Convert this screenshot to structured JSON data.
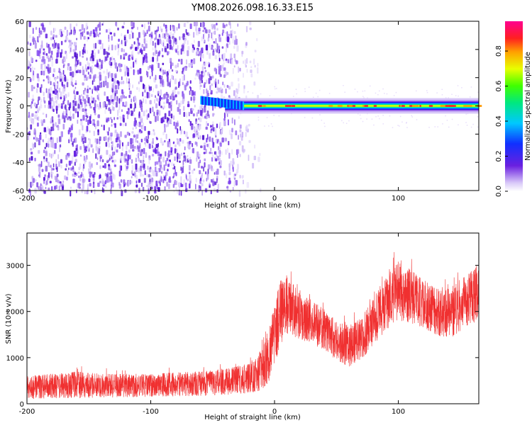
{
  "title": "YM08.2026.098.16.33.E15",
  "colors": {
    "snr_line": "#f03030",
    "frame": "#000000",
    "spec_dot": "#7a3cf0",
    "spec_light": "#c8b4f8"
  },
  "chart_data": [
    {
      "type": "heatmap",
      "name_hint": "spectrogram",
      "xlabel": "Height of straight line (km)",
      "ylabel": "Frequency (Hz)",
      "xlim": [
        -200,
        165
      ],
      "ylim": [
        -60,
        60
      ],
      "xticks": [
        -200,
        -100,
        0,
        100
      ],
      "yticks": [
        -60,
        -40,
        -20,
        0,
        20,
        40,
        60
      ],
      "noise_region_x": [
        -200,
        -25
      ],
      "signal_band": {
        "x_start": -60,
        "x_end": 165,
        "center_freq": 0,
        "half_width": 3
      },
      "colorbar": {
        "label": "Normalized spectral amplitude",
        "range": [
          0,
          0.97
        ],
        "ticks": [
          0.0,
          0.2,
          0.4,
          0.6,
          0.8
        ],
        "ticklabels": [
          "0.0",
          "0.2",
          "0.4",
          "0.6",
          "0.8"
        ],
        "colormap": "rainbow (white-purple-blue-cyan-green-yellow-red-magenta)"
      },
      "grid": false
    },
    {
      "type": "line",
      "name_hint": "snr",
      "xlabel": "Height of straight line (km)",
      "ylabel": "SNR (10 * v/v)",
      "xlim": [
        -200,
        165
      ],
      "ylim": [
        0,
        3700
      ],
      "xticks": [
        -200,
        -100,
        0,
        100
      ],
      "yticks": [
        0,
        1000,
        2000,
        3000
      ],
      "envelope": {
        "x": [
          -200,
          -180,
          -160,
          -140,
          -120,
          -100,
          -80,
          -60,
          -40,
          -25,
          -15,
          -10,
          -5,
          0,
          5,
          10,
          15,
          20,
          30,
          40,
          50,
          60,
          70,
          80,
          90,
          100,
          110,
          120,
          130,
          140,
          150,
          160,
          165
        ],
        "low": [
          100,
          120,
          120,
          130,
          140,
          150,
          160,
          170,
          190,
          220,
          260,
          300,
          450,
          800,
          1300,
          1500,
          1450,
          1400,
          1300,
          1150,
          950,
          800,
          950,
          1250,
          1600,
          1800,
          1750,
          1650,
          1500,
          1400,
          1550,
          1700,
          1800
        ],
        "high": [
          600,
          650,
          700,
          650,
          650,
          650,
          680,
          700,
          750,
          850,
          1000,
          1200,
          1600,
          2200,
          2700,
          2800,
          2600,
          2400,
          2250,
          2050,
          1800,
          1700,
          1850,
          2300,
          2800,
          3100,
          2900,
          2700,
          2500,
          2500,
          2700,
          2900,
          3050
        ]
      },
      "grid": false
    }
  ]
}
